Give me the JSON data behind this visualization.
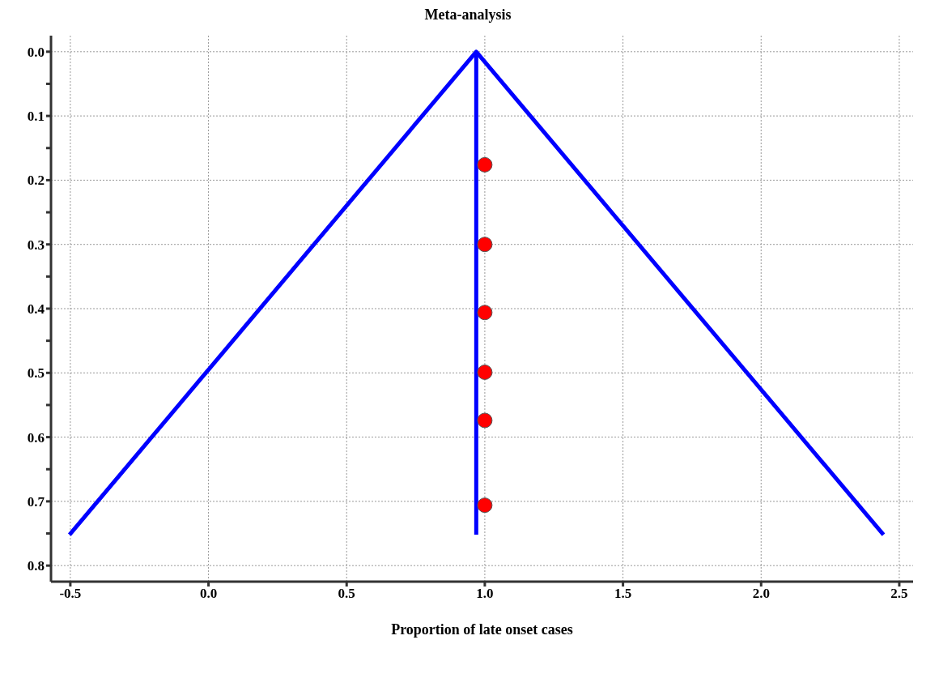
{
  "chart_data": {
    "type": "line",
    "title": "Meta-analysis",
    "xlabel": "Proportion of late onset cases",
    "xlim": [
      -0.57,
      2.55
    ],
    "ylim": [
      0.825,
      -0.025
    ],
    "xticks": [
      -0.5,
      {
        "value": 0,
        "label": "0.0"
      },
      0.5,
      {
        "value": 1,
        "label": "1.0"
      },
      1.5,
      {
        "value": 2,
        "label": "2.0"
      },
      2.5
    ],
    "yticks": [
      {
        "value": 0,
        "label": "0.0"
      },
      {
        "value": 0.05,
        "label": null
      },
      0.1,
      {
        "value": 0.15,
        "label": null
      },
      0.2,
      {
        "value": 0.25,
        "label": null
      },
      0.3,
      {
        "value": 0.35,
        "label": null
      },
      0.4,
      {
        "value": 0.45,
        "label": null
      },
      0.5,
      {
        "value": 0.55,
        "label": null
      },
      0.6,
      {
        "value": 0.65,
        "label": null
      },
      0.7,
      {
        "value": 0.75,
        "label": null
      },
      0.8
    ],
    "grid": true,
    "series": [
      {
        "color": "#0000ff",
        "marker": "none",
        "x": [
          -0.503,
          0.969,
          2.443
        ],
        "values": [
          0.752,
          0,
          0.752
        ]
      },
      {
        "color": "#0000ff",
        "marker": "none",
        "x": [
          0.969,
          0.969
        ],
        "values": [
          0,
          0.752
        ]
      },
      {
        "type": "scatter",
        "color": "#ff0000",
        "marker": "circle",
        "x": [
          1,
          1,
          1,
          1,
          1,
          1
        ],
        "values": [
          0.176,
          0.3,
          0.406,
          0.499,
          0.574,
          0.706
        ]
      }
    ]
  }
}
